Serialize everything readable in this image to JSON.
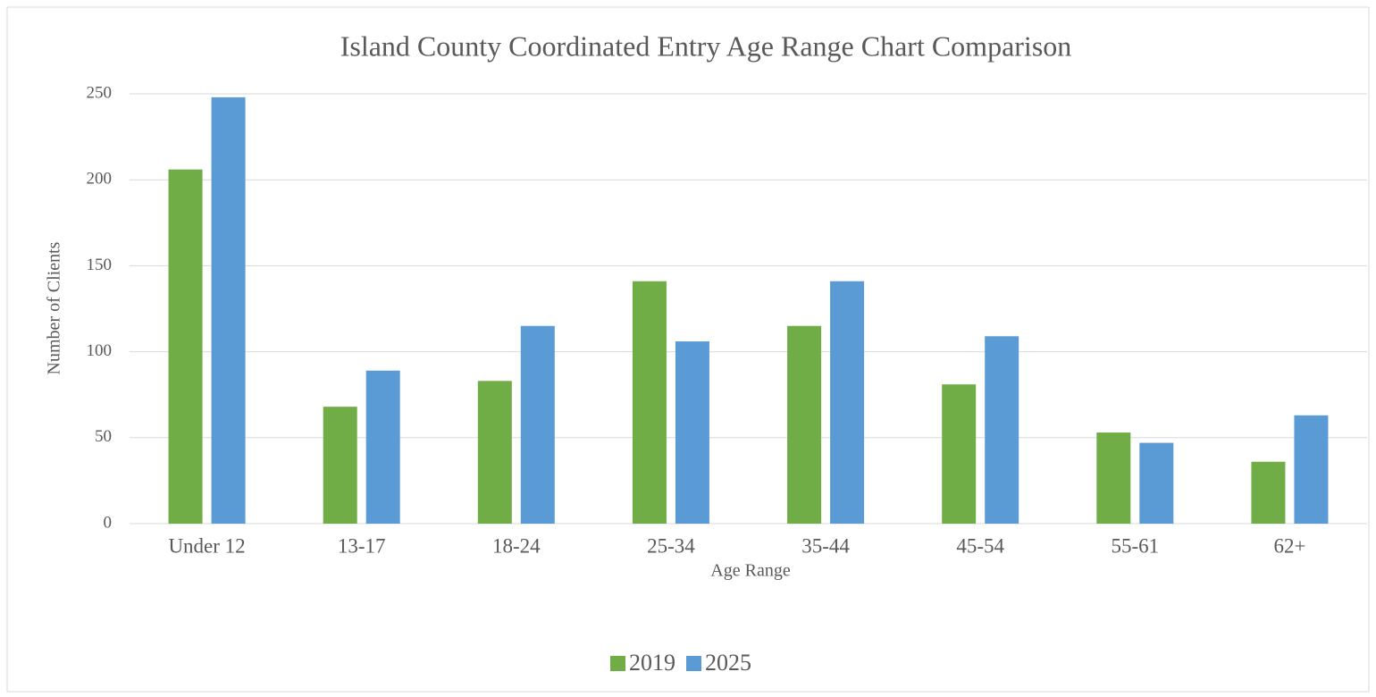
{
  "chart_data": {
    "type": "bar",
    "title": "Island County Coordinated Entry Age Range Chart Comparison",
    "x_label": "Age Range",
    "y_label": "Number of Clients",
    "categories": [
      "Under 12",
      "13-17",
      "18-24",
      "25-34",
      "35-44",
      "45-54",
      "55-61",
      "62+"
    ],
    "series": [
      {
        "name": "2019",
        "color": "#70ad47",
        "values": [
          206,
          68,
          83,
          141,
          115,
          81,
          53,
          36
        ]
      },
      {
        "name": "2025",
        "color": "#5b9bd5",
        "values": [
          248,
          89,
          115,
          106,
          141,
          109,
          47,
          63
        ]
      }
    ],
    "ylim": [
      0,
      250
    ],
    "yticks": [
      0,
      50,
      100,
      150,
      200,
      250
    ],
    "grid": true,
    "legend": "bottom"
  }
}
